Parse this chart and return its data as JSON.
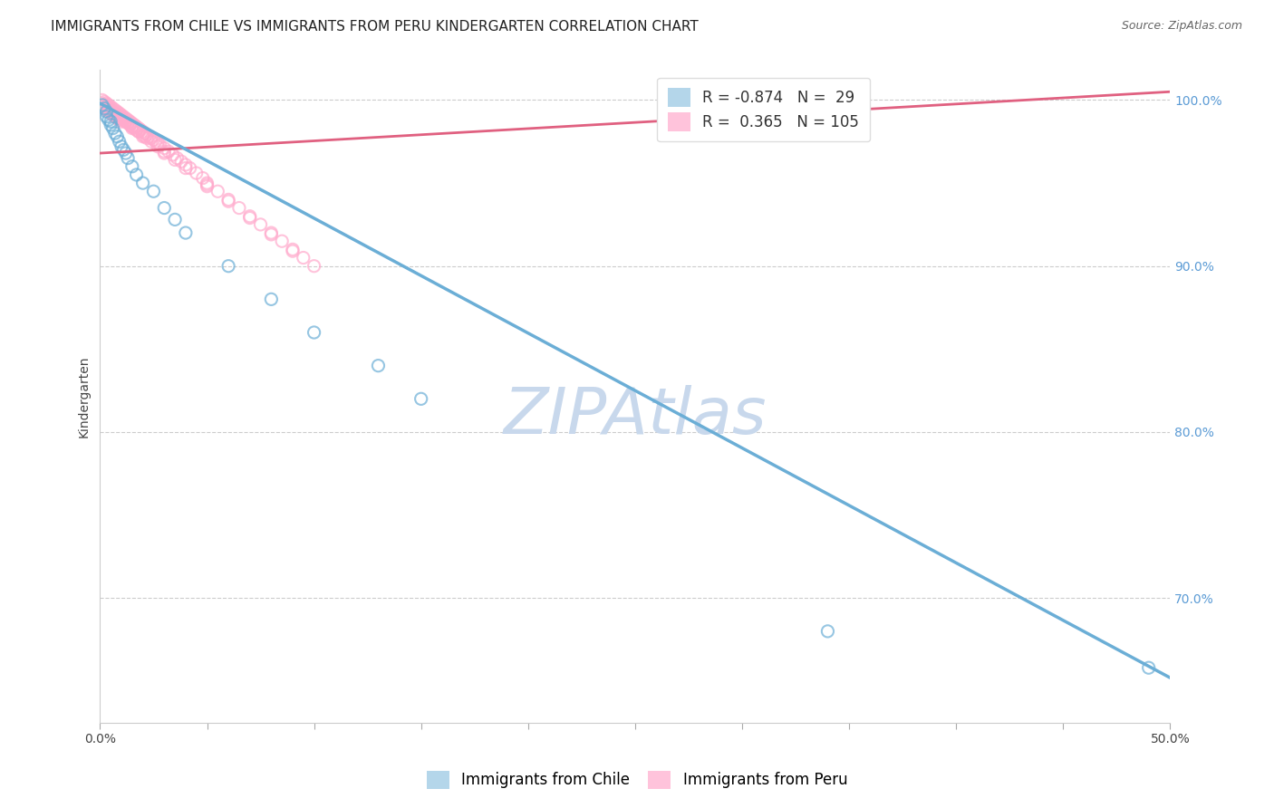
{
  "title": "IMMIGRANTS FROM CHILE VS IMMIGRANTS FROM PERU KINDERGARTEN CORRELATION CHART",
  "source": "Source: ZipAtlas.com",
  "ylabel": "Kindergarten",
  "xlim": [
    0.0,
    0.5
  ],
  "ylim": [
    0.625,
    1.018
  ],
  "xticks": [
    0.0,
    0.05,
    0.1,
    0.15,
    0.2,
    0.25,
    0.3,
    0.35,
    0.4,
    0.45,
    0.5
  ],
  "xticklabels_show": {
    "0.0": "0.0%",
    "0.5": "50.0%"
  },
  "yticks_right": [
    0.7,
    0.8,
    0.9,
    1.0
  ],
  "yticklabels_right": [
    "70.0%",
    "80.0%",
    "90.0%",
    "100.0%"
  ],
  "grid_color": "#cccccc",
  "background_color": "#ffffff",
  "watermark_text": "ZIPAtlas",
  "watermark_color": "#c8d8ec",
  "chile_color": "#6baed6",
  "peru_color": "#ffaacc",
  "chile_R": -0.874,
  "chile_N": 29,
  "peru_R": 0.365,
  "peru_N": 105,
  "legend_chile": "Immigrants from Chile",
  "legend_peru": "Immigrants from Peru",
  "chile_scatter_x": [
    0.001,
    0.002,
    0.003,
    0.003,
    0.004,
    0.005,
    0.005,
    0.006,
    0.007,
    0.008,
    0.009,
    0.01,
    0.011,
    0.012,
    0.013,
    0.015,
    0.017,
    0.02,
    0.025,
    0.03,
    0.035,
    0.04,
    0.06,
    0.08,
    0.1,
    0.13,
    0.15,
    0.34,
    0.49
  ],
  "chile_scatter_y": [
    0.997,
    0.995,
    0.993,
    0.99,
    0.988,
    0.985,
    0.987,
    0.983,
    0.98,
    0.978,
    0.975,
    0.972,
    0.97,
    0.968,
    0.965,
    0.96,
    0.955,
    0.95,
    0.945,
    0.935,
    0.928,
    0.92,
    0.9,
    0.88,
    0.86,
    0.84,
    0.82,
    0.68,
    0.658
  ],
  "peru_scatter_x": [
    0.001,
    0.001,
    0.001,
    0.002,
    0.002,
    0.002,
    0.003,
    0.003,
    0.003,
    0.004,
    0.004,
    0.004,
    0.005,
    0.005,
    0.005,
    0.006,
    0.006,
    0.006,
    0.007,
    0.007,
    0.007,
    0.008,
    0.008,
    0.008,
    0.009,
    0.009,
    0.009,
    0.01,
    0.01,
    0.01,
    0.011,
    0.011,
    0.012,
    0.012,
    0.013,
    0.013,
    0.014,
    0.014,
    0.015,
    0.015,
    0.016,
    0.016,
    0.017,
    0.017,
    0.018,
    0.018,
    0.019,
    0.02,
    0.02,
    0.021,
    0.022,
    0.022,
    0.023,
    0.024,
    0.025,
    0.026,
    0.027,
    0.028,
    0.03,
    0.032,
    0.034,
    0.036,
    0.038,
    0.04,
    0.042,
    0.045,
    0.048,
    0.05,
    0.055,
    0.06,
    0.065,
    0.07,
    0.075,
    0.08,
    0.085,
    0.09,
    0.095,
    0.1,
    0.002,
    0.003,
    0.004,
    0.005,
    0.006,
    0.007,
    0.008,
    0.009,
    0.01,
    0.012,
    0.015,
    0.018,
    0.021,
    0.024,
    0.027,
    0.03,
    0.035,
    0.04,
    0.05,
    0.06,
    0.07,
    0.08,
    0.09,
    0.05,
    0.03,
    0.02,
    0.015
  ],
  "peru_scatter_y": [
    1.0,
    0.998,
    0.996,
    0.999,
    0.997,
    0.995,
    0.998,
    0.996,
    0.994,
    0.997,
    0.995,
    0.993,
    0.996,
    0.994,
    0.992,
    0.995,
    0.993,
    0.991,
    0.994,
    0.992,
    0.99,
    0.993,
    0.991,
    0.989,
    0.992,
    0.99,
    0.988,
    0.991,
    0.989,
    0.987,
    0.99,
    0.988,
    0.989,
    0.987,
    0.988,
    0.986,
    0.987,
    0.985,
    0.986,
    0.984,
    0.985,
    0.983,
    0.984,
    0.982,
    0.983,
    0.981,
    0.982,
    0.981,
    0.979,
    0.98,
    0.979,
    0.977,
    0.978,
    0.977,
    0.976,
    0.975,
    0.974,
    0.973,
    0.971,
    0.969,
    0.967,
    0.965,
    0.963,
    0.961,
    0.959,
    0.956,
    0.953,
    0.95,
    0.945,
    0.94,
    0.935,
    0.93,
    0.925,
    0.92,
    0.915,
    0.91,
    0.905,
    0.9,
    0.997,
    0.996,
    0.995,
    0.994,
    0.993,
    0.992,
    0.991,
    0.99,
    0.989,
    0.987,
    0.984,
    0.981,
    0.978,
    0.975,
    0.972,
    0.969,
    0.964,
    0.959,
    0.949,
    0.939,
    0.929,
    0.919,
    0.909,
    0.948,
    0.968,
    0.978,
    0.983
  ],
  "chile_trendline_x": [
    0.0,
    0.5
  ],
  "chile_trendline_y": [
    0.998,
    0.652
  ],
  "peru_trendline_x": [
    0.0,
    0.5
  ],
  "peru_trendline_y": [
    0.968,
    1.005
  ],
  "title_fontsize": 11,
  "axis_label_fontsize": 10,
  "tick_fontsize": 10,
  "legend_fontsize": 12
}
